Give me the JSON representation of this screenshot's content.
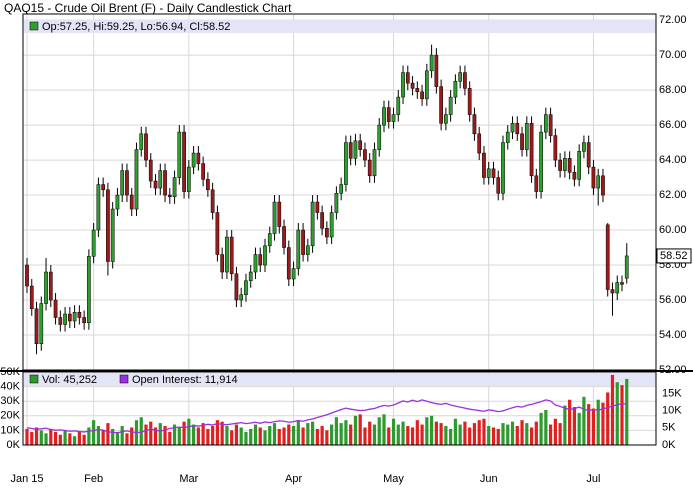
{
  "chart_data": {
    "type": "candlestick",
    "title": "QAQ15 - Crude Oil Brent (F) - Daily Candlestick Chart",
    "ohlc_legend": "Op:57.25, Hi:59.25, Lo:56.94, Cl:58.52",
    "up_color": "#2e9e2e",
    "down_color": "#9b1b1b",
    "ylim": [
      52,
      72.35
    ],
    "yticks": [
      {
        "value": 52,
        "label": "52.00"
      },
      {
        "value": 54,
        "label": "54.00"
      },
      {
        "value": 56,
        "label": "56.00"
      },
      {
        "value": 58,
        "label": "58.00"
      },
      {
        "value": 60,
        "label": "60.00"
      },
      {
        "value": 62,
        "label": "62.00"
      },
      {
        "value": 64,
        "label": "64.00"
      },
      {
        "value": 66,
        "label": "66.00"
      },
      {
        "value": 68,
        "label": "68.00"
      },
      {
        "value": 70,
        "label": "70.00"
      },
      {
        "value": 72,
        "label": "72.00"
      }
    ],
    "grid": true,
    "categories": [
      "Jan 15",
      null,
      null,
      null,
      null,
      null,
      null,
      null,
      null,
      null,
      null,
      null,
      null,
      null,
      "Feb",
      null,
      null,
      null,
      null,
      null,
      null,
      null,
      null,
      null,
      null,
      null,
      null,
      null,
      null,
      null,
      null,
      null,
      null,
      null,
      "Mar",
      null,
      null,
      null,
      null,
      null,
      null,
      null,
      null,
      null,
      null,
      null,
      null,
      null,
      null,
      null,
      null,
      null,
      null,
      null,
      null,
      null,
      "Apr",
      null,
      null,
      null,
      null,
      null,
      null,
      null,
      null,
      null,
      null,
      null,
      null,
      null,
      null,
      null,
      null,
      null,
      null,
      null,
      null,
      "May",
      null,
      null,
      null,
      null,
      null,
      null,
      null,
      null,
      null,
      null,
      null,
      null,
      null,
      null,
      null,
      null,
      null,
      null,
      null,
      "Jun",
      null,
      null,
      null,
      null,
      null,
      null,
      null,
      null,
      null,
      null,
      null,
      null,
      null,
      null,
      null,
      null,
      null,
      null,
      null,
      null,
      null,
      "Jul",
      null,
      null,
      null,
      null,
      null,
      null,
      null
    ],
    "ohlc": [
      [
        58.0,
        58.4,
        56.4,
        56.8
      ],
      [
        56.8,
        57.2,
        55.1,
        55.5
      ],
      [
        55.5,
        55.9,
        52.9,
        53.5
      ],
      [
        53.5,
        56.2,
        53.1,
        55.8
      ],
      [
        55.8,
        58.4,
        55.4,
        57.6
      ],
      [
        57.6,
        58.0,
        55.6,
        56.0
      ],
      [
        56.0,
        56.4,
        54.6,
        55.0
      ],
      [
        55.0,
        55.4,
        54.2,
        54.6
      ],
      [
        54.6,
        55.6,
        54.2,
        55.2
      ],
      [
        55.2,
        55.6,
        54.4,
        54.8
      ],
      [
        54.8,
        55.7,
        54.4,
        55.3
      ],
      [
        55.3,
        55.7,
        54.6,
        55.0
      ],
      [
        55.0,
        55.4,
        54.3,
        54.7
      ],
      [
        54.7,
        58.9,
        54.3,
        58.5
      ],
      [
        58.5,
        60.4,
        58.1,
        60.0
      ],
      [
        60.0,
        63.0,
        59.6,
        62.6
      ],
      [
        62.6,
        63.0,
        61.9,
        62.3
      ],
      [
        62.3,
        62.7,
        57.4,
        58.2
      ],
      [
        58.2,
        61.6,
        57.8,
        61.2
      ],
      [
        61.2,
        62.4,
        60.8,
        62.0
      ],
      [
        62.0,
        63.8,
        61.6,
        63.4
      ],
      [
        63.4,
        63.8,
        61.6,
        62.0
      ],
      [
        62.0,
        62.4,
        60.8,
        61.2
      ],
      [
        61.2,
        65.0,
        60.8,
        64.6
      ],
      [
        64.6,
        65.9,
        64.2,
        65.5
      ],
      [
        65.5,
        65.9,
        63.6,
        64.0
      ],
      [
        64.0,
        64.4,
        62.4,
        62.8
      ],
      [
        62.8,
        63.2,
        62.0,
        62.4
      ],
      [
        62.4,
        63.8,
        62.0,
        63.4
      ],
      [
        63.4,
        63.8,
        61.6,
        62.0
      ],
      [
        62.0,
        62.4,
        61.5,
        61.9
      ],
      [
        61.9,
        63.4,
        61.5,
        63.0
      ],
      [
        63.0,
        66.0,
        62.6,
        65.6
      ],
      [
        65.6,
        66.0,
        61.8,
        62.2
      ],
      [
        62.2,
        64.0,
        61.8,
        63.6
      ],
      [
        63.6,
        64.8,
        63.2,
        64.4
      ],
      [
        64.4,
        64.8,
        63.4,
        63.8
      ],
      [
        63.8,
        64.2,
        62.5,
        62.9
      ],
      [
        62.9,
        63.3,
        61.9,
        62.3
      ],
      [
        62.3,
        62.7,
        60.6,
        61.0
      ],
      [
        61.0,
        61.4,
        58.2,
        58.6
      ],
      [
        58.6,
        59.0,
        57.2,
        57.6
      ],
      [
        57.6,
        60.0,
        57.2,
        59.6
      ],
      [
        59.6,
        60.0,
        57.1,
        57.5
      ],
      [
        57.5,
        57.9,
        55.6,
        56.0
      ],
      [
        56.0,
        56.7,
        55.6,
        56.3
      ],
      [
        56.3,
        57.5,
        55.9,
        57.1
      ],
      [
        57.1,
        58.0,
        56.7,
        57.6
      ],
      [
        57.6,
        59.0,
        57.2,
        58.6
      ],
      [
        58.6,
        59.0,
        57.6,
        58.0
      ],
      [
        58.0,
        59.5,
        57.6,
        59.1
      ],
      [
        59.1,
        60.2,
        58.7,
        59.8
      ],
      [
        59.8,
        62.0,
        59.4,
        61.6
      ],
      [
        61.6,
        62.0,
        59.8,
        60.2
      ],
      [
        60.2,
        60.6,
        58.6,
        59.0
      ],
      [
        59.0,
        59.4,
        56.8,
        57.2
      ],
      [
        57.2,
        58.2,
        56.8,
        57.8
      ],
      [
        57.8,
        60.4,
        57.4,
        60.0
      ],
      [
        60.0,
        60.4,
        58.2,
        58.6
      ],
      [
        58.6,
        59.5,
        58.2,
        59.1
      ],
      [
        59.1,
        62.0,
        58.7,
        61.6
      ],
      [
        61.6,
        62.0,
        60.6,
        61.0
      ],
      [
        61.0,
        61.4,
        59.7,
        60.1
      ],
      [
        60.1,
        60.5,
        59.2,
        59.6
      ],
      [
        59.6,
        61.4,
        59.2,
        61.0
      ],
      [
        61.0,
        62.5,
        60.6,
        62.1
      ],
      [
        62.1,
        63.0,
        61.7,
        62.6
      ],
      [
        62.6,
        65.4,
        62.2,
        65.0
      ],
      [
        65.0,
        65.4,
        63.7,
        64.1
      ],
      [
        64.1,
        65.5,
        63.7,
        65.1
      ],
      [
        65.1,
        65.5,
        64.2,
        64.6
      ],
      [
        64.6,
        65.0,
        63.6,
        64.0
      ],
      [
        64.0,
        64.4,
        62.7,
        63.1
      ],
      [
        63.1,
        65.0,
        62.7,
        64.6
      ],
      [
        64.6,
        66.4,
        64.2,
        66.0
      ],
      [
        66.0,
        67.4,
        65.6,
        67.0
      ],
      [
        67.0,
        67.4,
        65.8,
        66.2
      ],
      [
        66.2,
        67.0,
        65.8,
        66.6
      ],
      [
        66.6,
        68.0,
        66.2,
        67.6
      ],
      [
        67.6,
        69.4,
        67.2,
        69.0
      ],
      [
        69.0,
        69.4,
        68.0,
        68.4
      ],
      [
        68.4,
        68.8,
        67.7,
        68.1
      ],
      [
        68.1,
        68.5,
        67.5,
        67.9
      ],
      [
        67.9,
        68.3,
        67.1,
        67.5
      ],
      [
        67.5,
        69.5,
        67.1,
        69.1
      ],
      [
        69.1,
        70.6,
        68.7,
        70.0
      ],
      [
        70.0,
        70.4,
        67.8,
        68.2
      ],
      [
        68.2,
        68.6,
        65.7,
        66.1
      ],
      [
        66.1,
        67.0,
        65.7,
        66.6
      ],
      [
        66.6,
        68.0,
        66.2,
        67.6
      ],
      [
        67.6,
        68.9,
        67.2,
        68.5
      ],
      [
        68.5,
        69.4,
        68.1,
        69.0
      ],
      [
        69.0,
        69.4,
        67.7,
        68.1
      ],
      [
        68.1,
        68.5,
        66.2,
        66.6
      ],
      [
        66.6,
        67.0,
        65.1,
        65.5
      ],
      [
        65.5,
        65.9,
        64.0,
        64.4
      ],
      [
        64.4,
        64.8,
        62.6,
        63.0
      ],
      [
        63.0,
        63.9,
        62.6,
        63.5
      ],
      [
        63.5,
        63.9,
        62.6,
        63.0
      ],
      [
        63.0,
        63.4,
        61.7,
        62.1
      ],
      [
        62.1,
        65.4,
        61.7,
        65.0
      ],
      [
        65.0,
        66.0,
        64.6,
        65.6
      ],
      [
        65.6,
        66.5,
        65.2,
        66.1
      ],
      [
        66.1,
        66.5,
        65.1,
        65.5
      ],
      [
        65.5,
        65.9,
        64.2,
        64.6
      ],
      [
        64.6,
        66.5,
        64.2,
        66.1
      ],
      [
        66.1,
        66.5,
        62.7,
        63.1
      ],
      [
        63.1,
        63.5,
        61.8,
        62.2
      ],
      [
        62.2,
        66.0,
        61.8,
        65.6
      ],
      [
        65.6,
        67.0,
        65.2,
        66.6
      ],
      [
        66.6,
        67.0,
        65.0,
        65.4
      ],
      [
        65.4,
        65.8,
        63.6,
        64.0
      ],
      [
        64.0,
        64.4,
        63.0,
        63.4
      ],
      [
        63.4,
        64.5,
        63.0,
        64.1
      ],
      [
        64.1,
        64.5,
        62.9,
        63.3
      ],
      [
        63.3,
        63.7,
        62.5,
        62.9
      ],
      [
        62.9,
        64.9,
        62.5,
        64.5
      ],
      [
        64.5,
        65.4,
        64.1,
        65.0
      ],
      [
        65.0,
        65.4,
        63.2,
        63.6
      ],
      [
        63.6,
        64.0,
        62.0,
        62.4
      ],
      [
        62.4,
        63.5,
        61.4,
        63.1
      ],
      [
        63.1,
        63.5,
        61.6,
        62.0
      ],
      [
        60.3,
        60.4,
        56.2,
        56.6
      ],
      [
        56.6,
        57.0,
        55.1,
        56.4
      ],
      [
        56.4,
        57.4,
        56.0,
        57.0
      ],
      [
        57.0,
        57.4,
        56.5,
        56.9
      ],
      [
        57.25,
        59.25,
        56.94,
        58.52
      ]
    ],
    "volume_legend": "Vol: 45,252",
    "volume_ylim": [
      0,
      50000
    ],
    "volume_yticks": [
      {
        "value": 0,
        "label": "0K"
      },
      {
        "value": 10000,
        "label": "10K"
      },
      {
        "value": 20000,
        "label": "20K"
      },
      {
        "value": 30000,
        "label": "30K"
      },
      {
        "value": 40000,
        "label": "40K"
      },
      {
        "value": 50000,
        "label": "50K"
      }
    ],
    "volume_up_color": "#2d9a2d",
    "volume_down_color": "#e02020",
    "volume": [
      11000,
      9000,
      12000,
      10000,
      8000,
      11000,
      9000,
      7000,
      10000,
      8000,
      6000,
      9000,
      7000,
      12000,
      17000,
      13000,
      10000,
      15000,
      11000,
      9000,
      13000,
      8000,
      12000,
      17000,
      19000,
      14000,
      16000,
      12000,
      15000,
      13000,
      9000,
      14000,
      12000,
      16000,
      18000,
      14000,
      12000,
      15000,
      11000,
      13000,
      17000,
      16000,
      13000,
      10000,
      14000,
      12000,
      9000,
      11000,
      14000,
      12000,
      10000,
      13000,
      15000,
      11000,
      12000,
      14000,
      13000,
      17000,
      12000,
      15000,
      16000,
      11000,
      13000,
      10000,
      14000,
      19000,
      15000,
      17000,
      14000,
      20000,
      21000,
      12000,
      16000,
      14000,
      19000,
      21000,
      12000,
      18000,
      14000,
      16000,
      13000,
      12000,
      17000,
      14000,
      19000,
      20000,
      16000,
      15000,
      13000,
      11000,
      18000,
      14000,
      16000,
      12000,
      15000,
      17000,
      18000,
      13000,
      12000,
      11000,
      15000,
      14000,
      16000,
      13000,
      17000,
      15000,
      12000,
      16000,
      22000,
      24000,
      14000,
      18000,
      15000,
      27000,
      31000,
      26000,
      22000,
      33000,
      28000,
      25000,
      31000,
      29000,
      36000,
      48000,
      43000,
      41000,
      45252
    ],
    "oi_legend": "Open Interest: 11,914",
    "oi_color": "#9b30e0",
    "y2lim": [
      0,
      21200
    ],
    "y2ticks": [
      {
        "value": 0,
        "label": "0K"
      },
      {
        "value": 5000,
        "label": "5K"
      },
      {
        "value": 10000,
        "label": "10K"
      },
      {
        "value": 15000,
        "label": "15K"
      }
    ],
    "open_interest": [
      5000,
      4800,
      4600,
      4700,
      4900,
      4500,
      4300,
      4400,
      4200,
      4000,
      4100,
      3900,
      3800,
      4000,
      4200,
      4500,
      4300,
      3800,
      3700,
      3500,
      3900,
      4100,
      3800,
      3600,
      3700,
      4200,
      4600,
      4300,
      4000,
      4400,
      4800,
      5000,
      5200,
      5100,
      5300,
      5600,
      5500,
      5700,
      6000,
      5800,
      6200,
      6000,
      5900,
      6100,
      6300,
      6500,
      6200,
      6400,
      6600,
      6300,
      6700,
      6500,
      6800,
      7000,
      6900,
      6600,
      6800,
      7100,
      6900,
      7300,
      7600,
      8000,
      8400,
      8800,
      9300,
      9800,
      10300,
      10700,
      10400,
      10200,
      10000,
      10100,
      10400,
      10600,
      11100,
      11500,
      11300,
      11600,
      12200,
      12800,
      12500,
      13000,
      12600,
      13100,
      12700,
      12300,
      12000,
      11800,
      12100,
      11600,
      11300,
      11000,
      10700,
      10400,
      10200,
      10000,
      9800,
      10200,
      10000,
      9700,
      9900,
      10400,
      10800,
      11200,
      11000,
      11500,
      11800,
      12200,
      12600,
      13100,
      12800,
      11600,
      11200,
      10700,
      10300,
      10600,
      11000,
      10400,
      10000,
      10300,
      10100,
      10500,
      10900,
      11300,
      11700,
      12000,
      11914
    ]
  }
}
